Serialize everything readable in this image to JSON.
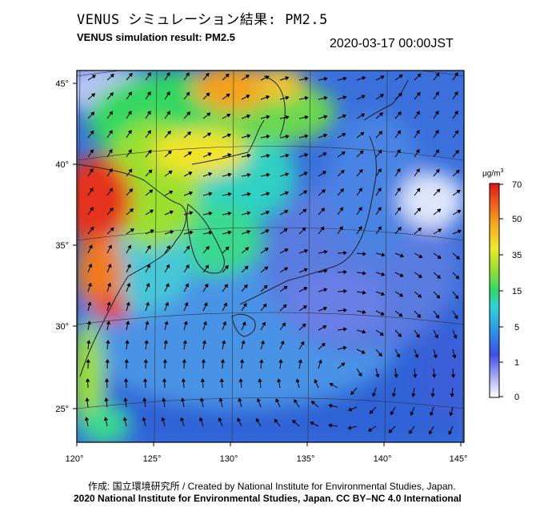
{
  "title_jp": "VENUS シミュレーション結果: PM2.5",
  "title_en": "VENUS simulation result: PM2.5",
  "timestamp": "2020-03-17 00:00JST",
  "map": {
    "lon_labels": [
      "120°",
      "125°",
      "130°",
      "135°",
      "140°",
      "145°"
    ],
    "lat_labels": [
      "45°",
      "40°",
      "35°",
      "30°",
      "25°"
    ]
  },
  "colorbar": {
    "unit": "μg/m",
    "unit_sup": "3",
    "ticks": [
      "70",
      "50",
      "35",
      "15",
      "5",
      "1",
      "0"
    ]
  },
  "footer_credit": "作成: 国立環境研究所 / Created by National Institute for Environmental Studies, Japan.",
  "footer_license": "2020 National Institute for Environmental Studies, Japan. CC BY–NC 4.0 International"
}
